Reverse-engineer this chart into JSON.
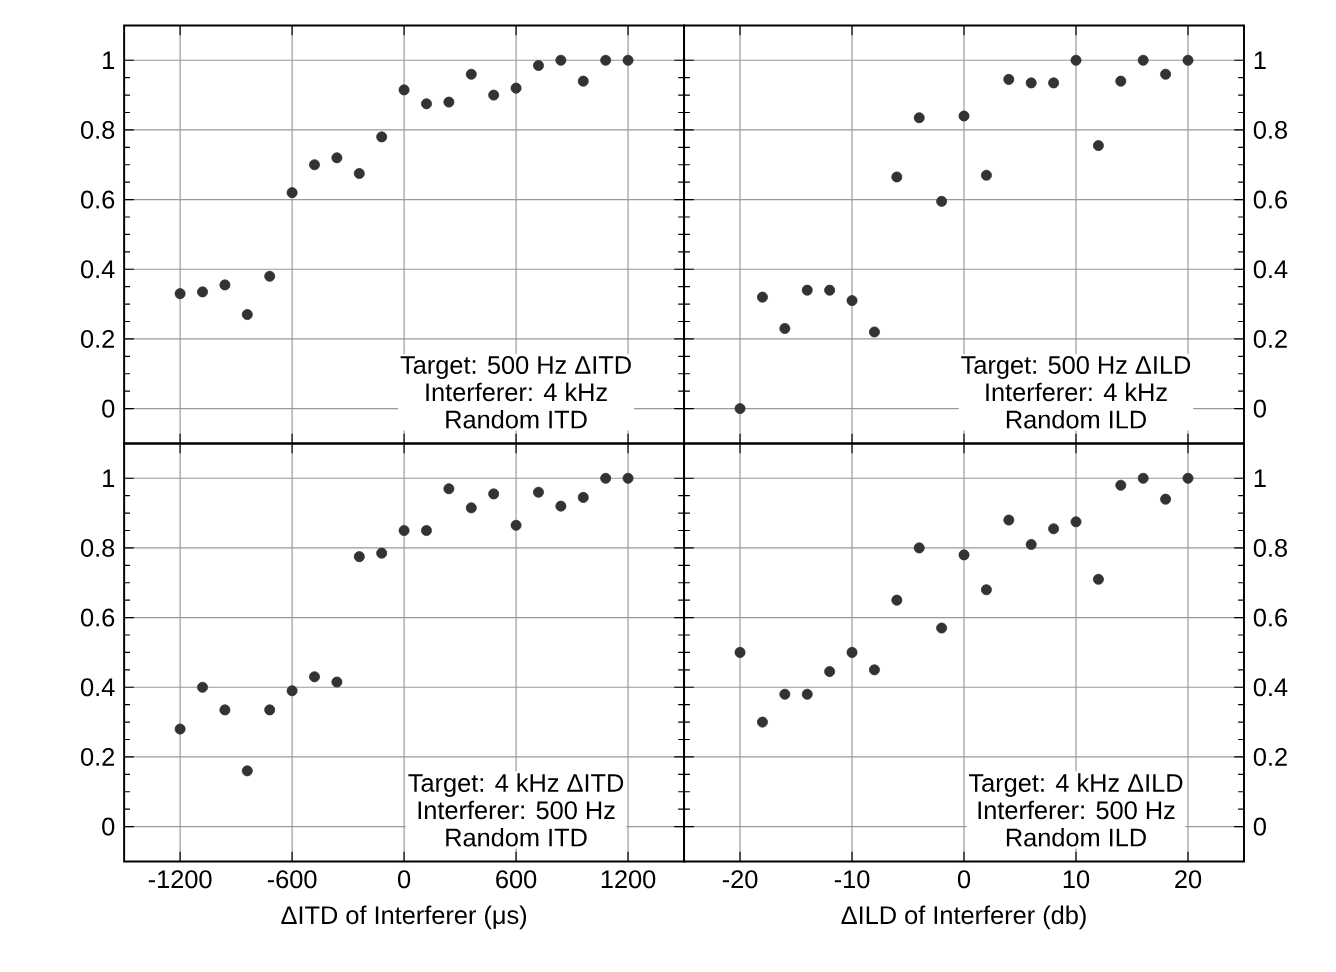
{
  "chart_data": [
    {
      "type": "scatter",
      "color": "#333333",
      "marker": "circle",
      "grid": true,
      "tick_labels": "y",
      "xlim": [
        -1500,
        1500
      ],
      "ylim": [
        -0.1,
        1.1
      ],
      "xticks": [
        -1200,
        -600,
        0,
        600,
        1200
      ],
      "yticks": [
        0,
        0.2,
        0.4,
        0.6,
        0.8,
        1
      ],
      "x": [
        -1200,
        -1080,
        -960,
        -840,
        -720,
        -600,
        -480,
        -360,
        -240,
        -120,
        0,
        120,
        240,
        360,
        480,
        600,
        720,
        840,
        960,
        1080,
        1200
      ],
      "values": [
        0.33,
        0.335,
        0.355,
        0.27,
        0.38,
        0.62,
        0.7,
        0.72,
        0.675,
        0.78,
        0.915,
        0.875,
        0.88,
        0.96,
        0.9,
        0.92,
        0.985,
        1.0,
        0.94,
        1.0,
        1.0
      ],
      "annotations": [
        "Target: 500 Hz ΔITD",
        "Interferer: 4 kHz",
        "Random ITD"
      ]
    },
    {
      "type": "scatter",
      "color": "#333333",
      "marker": "circle",
      "grid": true,
      "tick_labels": "y",
      "xlim": [
        -25,
        25
      ],
      "ylim": [
        -0.1,
        1.1
      ],
      "xticks": [
        -20,
        -10,
        0,
        10,
        20
      ],
      "yticks": [
        0,
        0.2,
        0.4,
        0.6,
        0.8,
        1
      ],
      "x": [
        -20,
        -18,
        -16,
        -14,
        -12,
        -10,
        -8,
        -6,
        -4,
        -2,
        0,
        2,
        4,
        6,
        8,
        10,
        12,
        14,
        16,
        18,
        20
      ],
      "values": [
        0,
        0.32,
        0.23,
        0.34,
        0.34,
        0.31,
        0.22,
        0.665,
        0.835,
        0.595,
        0.84,
        0.67,
        0.945,
        0.935,
        0.935,
        1.0,
        0.755,
        0.94,
        1.0,
        0.96,
        1.0
      ],
      "annotations": [
        "Target: 500 Hz ΔILD",
        "Interferer: 4 kHz",
        "Random ILD"
      ]
    },
    {
      "type": "scatter",
      "color": "#333333",
      "marker": "circle",
      "grid": true,
      "xlabel": "ΔITD of Interferer (μs)",
      "xlim": [
        -1500,
        1500
      ],
      "ylim": [
        -0.1,
        1.1
      ],
      "xticks": [
        -1200,
        -600,
        0,
        600,
        1200
      ],
      "yticks": [
        0,
        0.2,
        0.4,
        0.6,
        0.8,
        1
      ],
      "x": [
        -1200,
        -1080,
        -960,
        -840,
        -720,
        -600,
        -480,
        -360,
        -240,
        -120,
        0,
        120,
        240,
        360,
        480,
        600,
        720,
        840,
        960,
        1080,
        1200
      ],
      "values": [
        0.28,
        0.4,
        0.335,
        0.16,
        0.335,
        0.39,
        0.43,
        0.415,
        0.775,
        0.785,
        0.85,
        0.85,
        0.97,
        0.915,
        0.955,
        0.865,
        0.96,
        0.92,
        0.945,
        1.0,
        1.0
      ],
      "annotations": [
        "Target: 4 kHz ΔITD",
        "Interferer: 500 Hz",
        "Random ITD"
      ]
    },
    {
      "type": "scatter",
      "color": "#333333",
      "marker": "circle",
      "grid": true,
      "xlabel": "ΔILD of Interferer (db)",
      "xlim": [
        -25,
        25
      ],
      "ylim": [
        -0.1,
        1.1
      ],
      "xticks": [
        -20,
        -10,
        0,
        10,
        20
      ],
      "yticks": [
        0,
        0.2,
        0.4,
        0.6,
        0.8,
        1
      ],
      "x": [
        -20,
        -18,
        -16,
        -14,
        -12,
        -10,
        -8,
        -6,
        -4,
        -2,
        0,
        2,
        4,
        6,
        8,
        10,
        12,
        14,
        16,
        18,
        20
      ],
      "values": [
        0.5,
        0.3,
        0.38,
        0.38,
        0.445,
        0.5,
        0.45,
        0.65,
        0.8,
        0.57,
        0.78,
        0.68,
        0.88,
        0.81,
        0.855,
        0.875,
        0.71,
        0.98,
        1.0,
        0.94,
        1.0
      ],
      "annotations": [
        "Target: 4 kHz ΔILD",
        "Interferer: 500 Hz",
        "Random ILD"
      ]
    }
  ]
}
